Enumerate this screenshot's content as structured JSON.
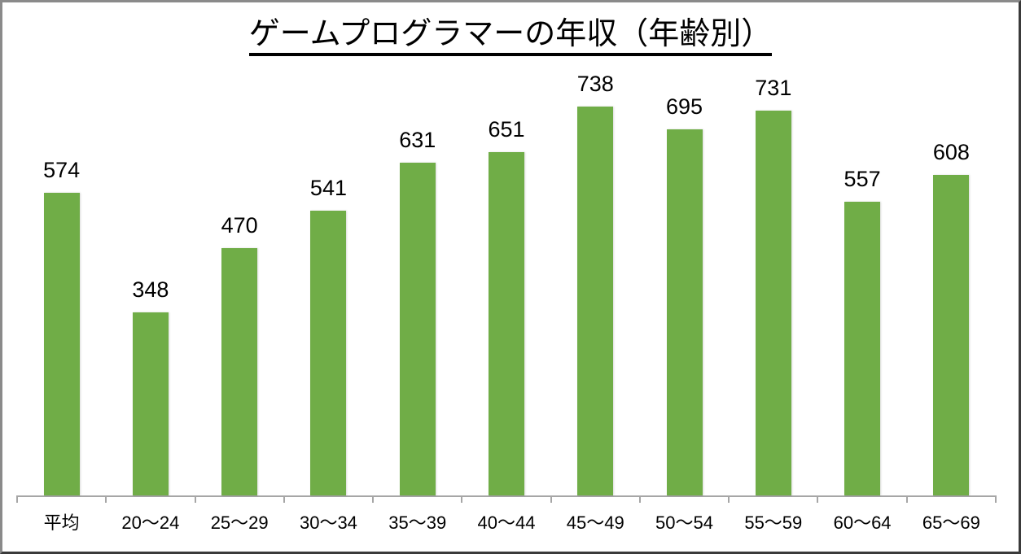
{
  "chart_data": {
    "type": "bar",
    "title": "ゲームプログラマーの年収（年齢別）",
    "xlabel": "",
    "ylabel": "",
    "categories": [
      "平均",
      "20〜24",
      "25〜29",
      "30〜34",
      "35〜39",
      "40〜44",
      "45〜49",
      "50〜54",
      "55〜59",
      "60〜64",
      "65〜69"
    ],
    "values": [
      574,
      348,
      470,
      541,
      631,
      651,
      738,
      695,
      731,
      557,
      608
    ],
    "data_labels": [
      "574",
      "348",
      "470",
      "541",
      "631",
      "651",
      "738",
      "695",
      "731",
      "557",
      "608"
    ],
    "ylim": [
      0,
      800
    ],
    "grid": false,
    "legend": "none",
    "bar_color": "#70AD47"
  }
}
